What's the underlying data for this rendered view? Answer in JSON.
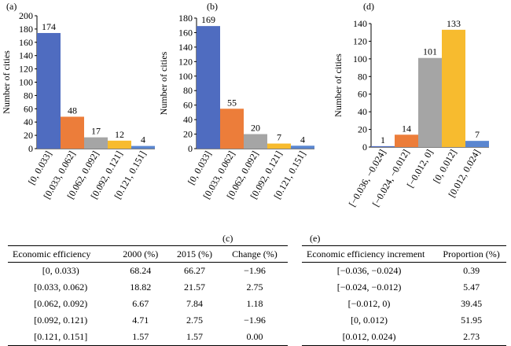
{
  "chart_data": [
    {
      "panel": "(a)",
      "type": "bar",
      "categories": [
        "[0, 0.033]",
        "[0.033, 0.062]",
        "[0.062, 0.092]",
        "[0.092, 0.121]",
        "[0.121, 0.151]"
      ],
      "values": [
        174,
        48,
        17,
        12,
        4
      ],
      "colors": [
        "#4f6cc0",
        "#ec7d3a",
        "#a5a5a5",
        "#f7bb2f",
        "#5a86d0"
      ],
      "ylabel": "Number of cities",
      "ylim": [
        0,
        200
      ],
      "yticks": [
        0,
        20,
        40,
        60,
        80,
        100,
        120,
        140,
        160,
        180,
        200
      ]
    },
    {
      "panel": "(b)",
      "type": "bar",
      "categories": [
        "[0, 0.033]",
        "[0.033, 0.062]",
        "[0.062, 0.092]",
        "[0.092, 0.121]",
        "[0.121, 0.151]"
      ],
      "values": [
        169,
        55,
        20,
        7,
        4
      ],
      "colors": [
        "#4f6cc0",
        "#ec7d3a",
        "#a5a5a5",
        "#f7bb2f",
        "#5a86d0"
      ],
      "ylabel": "Number of cities",
      "ylim": [
        0,
        180
      ],
      "yticks": [
        0,
        20,
        40,
        60,
        80,
        100,
        120,
        140,
        160,
        180
      ]
    },
    {
      "panel": "(d)",
      "type": "bar",
      "categories": [
        "[−0.036, −0.024]",
        "[−0.024, −0.012]",
        "[−0.012, 0]",
        "[0, 0.012]",
        "[0.012, 0.024]"
      ],
      "values": [
        1,
        14,
        101,
        133,
        7
      ],
      "colors": [
        "#4f6cc0",
        "#ec7d3a",
        "#a5a5a5",
        "#f7bb2f",
        "#5a86d0"
      ],
      "ylabel": "Number of cities",
      "ylim": [
        0,
        140
      ],
      "yticks": [
        0,
        20,
        40,
        60,
        80,
        100,
        120,
        140
      ]
    },
    {
      "panel": "(c)",
      "type": "table",
      "columns": [
        "Economic efficiency",
        "2000 (%)",
        "2015 (%)",
        "Change (%)"
      ],
      "rows": [
        [
          "[0, 0.033)",
          "68.24",
          "66.27",
          "−1.96"
        ],
        [
          "[0.033, 0.062)",
          "18.82",
          "21.57",
          "2.75"
        ],
        [
          "[0.062, 0.092)",
          "6.67",
          "7.84",
          "1.18"
        ],
        [
          "[0.092, 0.121)",
          "4.71",
          "2.75",
          "−1.96"
        ],
        [
          "[0.121, 0.151]",
          "1.57",
          "1.57",
          "0.00"
        ]
      ]
    },
    {
      "panel": "(e)",
      "type": "table",
      "columns": [
        "Economic efficiency increment",
        "Proportion (%)"
      ],
      "rows": [
        [
          "[−0.036, −0.024)",
          "0.39"
        ],
        [
          "[−0.024, −0.012)",
          "5.47"
        ],
        [
          "[−0.012, 0)",
          "39.45"
        ],
        [
          "[0, 0.012)",
          "51.95"
        ],
        [
          "[0.012, 0.024)",
          "2.73"
        ]
      ]
    }
  ]
}
